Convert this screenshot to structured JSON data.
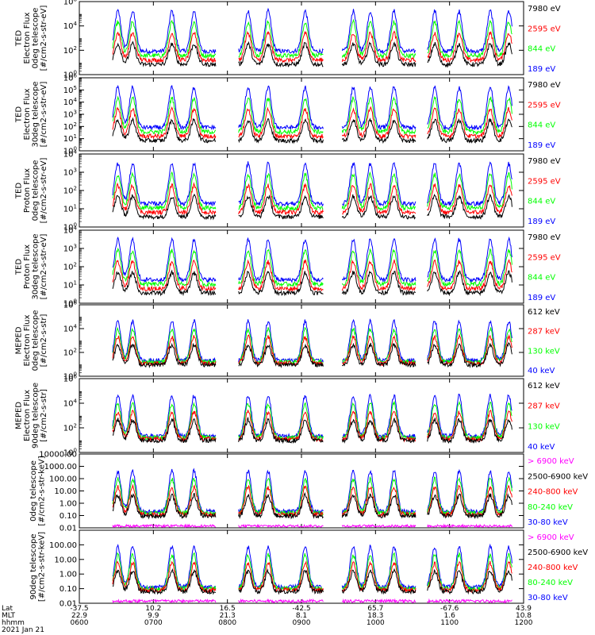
{
  "colors": {
    "blue": "#0000ff",
    "red": "#ff0000",
    "green": "#00ff00",
    "black": "#000000",
    "magenta": "#ff00ff"
  },
  "chart_data": [
    {
      "type": "line",
      "ylabel": [
        "TED",
        "Electron Flux",
        "0deg telescope",
        "[#/cm2-s-str-eV]"
      ],
      "yscale": "log",
      "yticks": [
        "10^0",
        "10^2",
        "10^4",
        "10^6"
      ],
      "ylim": [
        1,
        1000000
      ],
      "legend": [
        "7980 eV",
        "2595 eV",
        "844 eV",
        "189 eV"
      ],
      "legend_colors": [
        "black",
        "red",
        "green",
        "blue"
      ]
    },
    {
      "type": "line",
      "ylabel": [
        "TED",
        "Electron Flux",
        "30deg telescope",
        "[#/cm2-s-str-eV]"
      ],
      "yscale": "log",
      "yticks": [
        "10^0",
        "10^1",
        "10^2",
        "10^3",
        "10^4",
        "10^5",
        "10^6"
      ],
      "ylim": [
        1,
        1000000
      ],
      "legend": [
        "7980 eV",
        "2595 eV",
        "844 eV",
        "189 eV"
      ],
      "legend_colors": [
        "black",
        "red",
        "green",
        "blue"
      ]
    },
    {
      "type": "line",
      "ylabel": [
        "TED",
        "Proton Flux",
        "0deg telescope",
        "[#/cm2-s-str-eV]"
      ],
      "yscale": "log",
      "yticks": [
        "10^0",
        "10^1",
        "10^2",
        "10^3",
        "10^4"
      ],
      "ylim": [
        1,
        10000
      ],
      "legend": [
        "7980 eV",
        "2595 eV",
        "844 eV",
        "189 eV"
      ],
      "legend_colors": [
        "black",
        "red",
        "green",
        "blue"
      ]
    },
    {
      "type": "line",
      "ylabel": [
        "TED",
        "Proton Flux",
        "30deg telescope",
        "[#/cm2-s-str-eV]"
      ],
      "yscale": "log",
      "yticks": [
        "10^0",
        "10^1",
        "10^2",
        "10^3",
        "10^4"
      ],
      "ylim": [
        1,
        10000
      ],
      "legend": [
        "7980 eV",
        "2595 eV",
        "844 eV",
        "189 eV"
      ],
      "legend_colors": [
        "black",
        "red",
        "green",
        "blue"
      ]
    },
    {
      "type": "line",
      "ylabel": [
        "MEPED",
        "Electron Flux",
        "0deg telescope",
        "[#/cm2-s-str]"
      ],
      "yscale": "log",
      "yticks": [
        "10^0",
        "10^2",
        "10^4",
        "10^6"
      ],
      "ylim": [
        1,
        1000000
      ],
      "legend": [
        "612 keV",
        "287 keV",
        "130 keV",
        "40 keV"
      ],
      "legend_colors": [
        "black",
        "red",
        "green",
        "blue"
      ]
    },
    {
      "type": "line",
      "ylabel": [
        "MEPED",
        "Electron Flux",
        "90deg telescope",
        "[#/cm2-s-str]"
      ],
      "yscale": "log",
      "yticks": [
        "10^0",
        "10^2",
        "10^4",
        "10^6"
      ],
      "ylim": [
        1,
        1000000
      ],
      "legend": [
        "612 keV",
        "287 keV",
        "130 keV",
        "40 keV"
      ],
      "legend_colors": [
        "black",
        "red",
        "green",
        "blue"
      ]
    },
    {
      "type": "line",
      "ylabel": [
        "0deg telescope",
        "[#/cm2-s-str-keV]"
      ],
      "yscale": "log",
      "yticks": [
        "0.01",
        "0.10",
        "1.00",
        "10.00",
        "100.00",
        "1000.00",
        "10000.00"
      ],
      "ylim": [
        0.01,
        10000
      ],
      "legend": [
        "> 6900 keV",
        "2500-6900 keV",
        "240-800 keV",
        "80-240 keV",
        "30-80 keV"
      ],
      "legend_colors": [
        "magenta",
        "black",
        "red",
        "green",
        "blue"
      ]
    },
    {
      "type": "line",
      "ylabel": [
        "90deg telescope",
        "[#/cm2-s-str-keV]"
      ],
      "yscale": "log",
      "yticks": [
        "0.01",
        "0.10",
        "1.00",
        "10.00",
        "100.00"
      ],
      "ylim": [
        0.01,
        1000
      ],
      "legend": [
        "> 6900 keV",
        "2500-6900 keV",
        "240-800 keV",
        "80-240 keV",
        "30-80 keV"
      ],
      "legend_colors": [
        "magenta",
        "black",
        "red",
        "green",
        "blue"
      ]
    }
  ],
  "x_axis": {
    "row_labels": [
      "Lat",
      "MLT",
      "hhmm",
      "2021 Jan 21"
    ],
    "ticks": [
      {
        "t": 0,
        "lat": "-37.5",
        "mlt": "22.9",
        "hhmm": "0600"
      },
      {
        "t": 1,
        "lat": "10.2",
        "mlt": "9.9",
        "hhmm": "0700"
      },
      {
        "t": 2,
        "lat": "16.5",
        "mlt": "21.3",
        "hhmm": "0800"
      },
      {
        "t": 3,
        "lat": "-42.5",
        "mlt": "8.1",
        "hhmm": "0900"
      },
      {
        "t": 4,
        "lat": "65.7",
        "mlt": "18.3",
        "hhmm": "1000"
      },
      {
        "t": 5,
        "lat": "-67.6",
        "mlt": "1.6",
        "hhmm": "1100"
      },
      {
        "t": 6,
        "lat": "43.9",
        "mlt": "10.8",
        "hhmm": "1200"
      }
    ],
    "xlim": [
      0,
      6
    ]
  }
}
